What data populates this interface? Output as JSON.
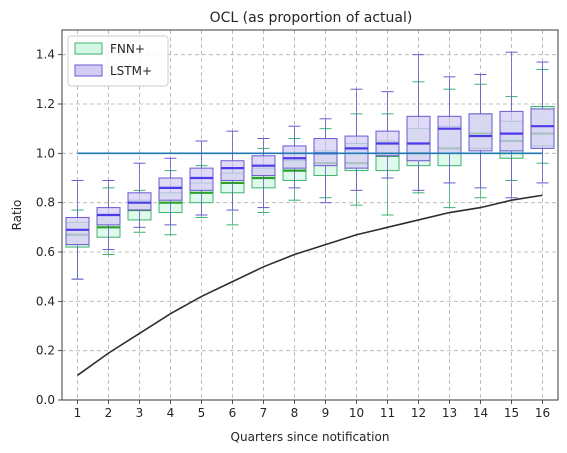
{
  "chart_data": {
    "type": "box",
    "title": "OCL (as proportion of actual)",
    "xlabel": "Quarters since notification",
    "ylabel": "Ratio",
    "categories": [
      "1",
      "2",
      "3",
      "4",
      "5",
      "6",
      "7",
      "8",
      "9",
      "10",
      "11",
      "12",
      "13",
      "14",
      "15",
      "16"
    ],
    "ylim": [
      0,
      1.5
    ],
    "yticks": [
      "0.0",
      "0.2",
      "0.4",
      "0.6",
      "0.8",
      "1.0",
      "1.2",
      "1.4"
    ],
    "grid": true,
    "legend_position": "top-left",
    "series": [
      {
        "name": "FNN+",
        "color": "#3cb371",
        "fill": "#d4f7e4",
        "median_color": "#2ca02c",
        "boxes": [
          {
            "whislo": 0.49,
            "q1": 0.62,
            "med": 0.67,
            "q3": 0.72,
            "whishi": 0.77
          },
          {
            "whislo": 0.59,
            "q1": 0.66,
            "med": 0.7,
            "q3": 0.75,
            "whishi": 0.86
          },
          {
            "whislo": 0.68,
            "q1": 0.73,
            "med": 0.77,
            "q3": 0.81,
            "whishi": 0.85
          },
          {
            "whislo": 0.67,
            "q1": 0.76,
            "med": 0.8,
            "q3": 0.84,
            "whishi": 0.93
          },
          {
            "whislo": 0.74,
            "q1": 0.8,
            "med": 0.84,
            "q3": 0.88,
            "whishi": 0.95
          },
          {
            "whislo": 0.71,
            "q1": 0.84,
            "med": 0.88,
            "q3": 0.92,
            "whishi": 1.0
          },
          {
            "whislo": 0.76,
            "q1": 0.86,
            "med": 0.9,
            "q3": 0.94,
            "whishi": 1.02
          },
          {
            "whislo": 0.81,
            "q1": 0.89,
            "med": 0.93,
            "q3": 0.97,
            "whishi": 1.06
          },
          {
            "whislo": 0.82,
            "q1": 0.91,
            "med": 0.96,
            "q3": 1.01,
            "whishi": 1.1
          },
          {
            "whislo": 0.79,
            "q1": 0.93,
            "med": 0.96,
            "q3": 1.04,
            "whishi": 1.16
          },
          {
            "whislo": 0.75,
            "q1": 0.93,
            "med": 0.99,
            "q3": 1.05,
            "whishi": 1.16
          },
          {
            "whislo": 0.84,
            "q1": 0.95,
            "med": 1.0,
            "q3": 1.1,
            "whishi": 1.29
          },
          {
            "whislo": 0.78,
            "q1": 0.95,
            "med": 1.02,
            "q3": 1.11,
            "whishi": 1.26
          },
          {
            "whislo": 0.82,
            "q1": 1.02,
            "med": 1.08,
            "q3": 1.16,
            "whishi": 1.28
          },
          {
            "whislo": 0.89,
            "q1": 0.98,
            "med": 1.05,
            "q3": 1.13,
            "whishi": 1.23
          },
          {
            "whislo": 0.96,
            "q1": 1.03,
            "med": 1.08,
            "q3": 1.19,
            "whishi": 1.34
          }
        ]
      },
      {
        "name": "LSTM+",
        "color": "#6a5acd",
        "fill": "#d5ccf5",
        "median_color": "#4b3ae8",
        "boxes": [
          {
            "whislo": 0.49,
            "q1": 0.63,
            "med": 0.69,
            "q3": 0.74,
            "whishi": 0.89
          },
          {
            "whislo": 0.61,
            "q1": 0.71,
            "med": 0.75,
            "q3": 0.78,
            "whishi": 0.89
          },
          {
            "whislo": 0.7,
            "q1": 0.77,
            "med": 0.8,
            "q3": 0.84,
            "whishi": 0.96
          },
          {
            "whislo": 0.71,
            "q1": 0.81,
            "med": 0.86,
            "q3": 0.9,
            "whishi": 0.98
          },
          {
            "whislo": 0.75,
            "q1": 0.85,
            "med": 0.9,
            "q3": 0.94,
            "whishi": 1.05
          },
          {
            "whislo": 0.77,
            "q1": 0.89,
            "med": 0.94,
            "q3": 0.97,
            "whishi": 1.09
          },
          {
            "whislo": 0.78,
            "q1": 0.91,
            "med": 0.95,
            "q3": 0.99,
            "whishi": 1.06
          },
          {
            "whislo": 0.86,
            "q1": 0.94,
            "med": 0.98,
            "q3": 1.03,
            "whishi": 1.11
          },
          {
            "whislo": 0.8,
            "q1": 0.95,
            "med": 1.0,
            "q3": 1.06,
            "whishi": 1.14
          },
          {
            "whislo": 0.85,
            "q1": 0.94,
            "med": 1.02,
            "q3": 1.07,
            "whishi": 1.26
          },
          {
            "whislo": 0.9,
            "q1": 0.99,
            "med": 1.04,
            "q3": 1.09,
            "whishi": 1.25
          },
          {
            "whislo": 0.85,
            "q1": 0.97,
            "med": 1.04,
            "q3": 1.15,
            "whishi": 1.4
          },
          {
            "whislo": 0.88,
            "q1": 1.0,
            "med": 1.1,
            "q3": 1.15,
            "whishi": 1.31
          },
          {
            "whislo": 0.86,
            "q1": 1.01,
            "med": 1.07,
            "q3": 1.16,
            "whishi": 1.32
          },
          {
            "whislo": 0.82,
            "q1": 1.01,
            "med": 1.08,
            "q3": 1.17,
            "whishi": 1.41
          },
          {
            "whislo": 0.88,
            "q1": 1.02,
            "med": 1.11,
            "q3": 1.18,
            "whishi": 1.37
          }
        ]
      }
    ],
    "lines": [
      {
        "color": "#1f77b4",
        "x": [
          1,
          16
        ],
        "y": [
          1.0,
          1.0
        ]
      },
      {
        "color": "#2e2e2e",
        "x": [
          1,
          2,
          3,
          4,
          5,
          6,
          7,
          8,
          9,
          10,
          11,
          12,
          13,
          14,
          15,
          16
        ],
        "y": [
          0.1,
          0.19,
          0.27,
          0.35,
          0.42,
          0.48,
          0.54,
          0.59,
          0.63,
          0.67,
          0.7,
          0.73,
          0.76,
          0.78,
          0.81,
          0.83
        ]
      }
    ]
  }
}
